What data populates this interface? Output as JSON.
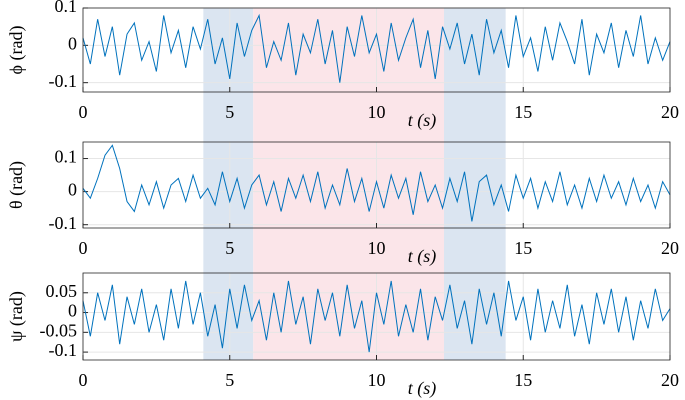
{
  "chart_data": [
    {
      "type": "line",
      "ylabel": "ϕ (rad)",
      "xlabel": "t (s)",
      "xlim": [
        0,
        20
      ],
      "xticks": [
        0,
        5,
        10,
        15,
        20
      ],
      "ylim": [
        -0.125,
        0.1
      ],
      "yticks": [
        -0.1,
        0,
        0.1
      ],
      "grid": true,
      "shaded_regions": [
        {
          "from": 4.1,
          "to": 5.8,
          "color": "#dbe5f1"
        },
        {
          "from": 5.8,
          "to": 12.3,
          "color": "#fbe5e9"
        },
        {
          "from": 12.3,
          "to": 14.4,
          "color": "#dbe5f1"
        }
      ],
      "x": [
        0,
        0.25,
        0.5,
        0.75,
        1,
        1.25,
        1.5,
        1.75,
        2,
        2.25,
        2.5,
        2.75,
        3,
        3.25,
        3.5,
        3.75,
        4,
        4.25,
        4.5,
        4.75,
        5,
        5.25,
        5.5,
        5.75,
        6,
        6.25,
        6.5,
        6.75,
        7,
        7.25,
        7.5,
        7.75,
        8,
        8.25,
        8.5,
        8.75,
        9,
        9.25,
        9.5,
        9.75,
        10,
        10.25,
        10.5,
        10.75,
        11,
        11.25,
        11.5,
        11.75,
        12,
        12.25,
        12.5,
        12.75,
        13,
        13.25,
        13.5,
        13.75,
        14,
        14.25,
        14.5,
        14.75,
        15,
        15.25,
        15.5,
        15.75,
        16,
        16.25,
        16.5,
        16.75,
        17,
        17.25,
        17.5,
        17.75,
        18,
        18.25,
        18.5,
        18.75,
        19,
        19.25,
        19.5,
        19.75,
        20
      ],
      "series": [
        {
          "color": "#0072bd",
          "values": [
            0.02,
            -0.05,
            0.07,
            -0.03,
            0.05,
            -0.08,
            0.03,
            0.06,
            -0.04,
            0.01,
            -0.07,
            0.08,
            -0.02,
            0.04,
            -0.06,
            0.05,
            -0.01,
            0.07,
            -0.05,
            0.02,
            -0.09,
            0.06,
            -0.03,
            0.04,
            0.08,
            -0.06,
            0.01,
            -0.04,
            0.06,
            -0.08,
            0.03,
            -0.02,
            0.07,
            -0.05,
            0.04,
            -0.1,
            0.05,
            -0.03,
            0.08,
            -0.02,
            0.03,
            -0.07,
            0.06,
            -0.04,
            0.02,
            0.07,
            -0.06,
            0.04,
            -0.09,
            0.05,
            -0.01,
            0.06,
            -0.05,
            0.03,
            -0.08,
            0.07,
            -0.02,
            0.04,
            -0.06,
            0.08,
            -0.03,
            0.02,
            -0.07,
            0.05,
            -0.04,
            0.06,
            0.01,
            -0.05,
            0.07,
            -0.08,
            0.03,
            -0.02,
            0.06,
            -0.06,
            0.04,
            -0.03,
            0.08,
            -0.05,
            0.02,
            -0.04,
            0.01
          ]
        }
      ]
    },
    {
      "type": "line",
      "ylabel": "θ (rad)",
      "xlabel": "t (s)",
      "xlim": [
        0,
        20
      ],
      "xticks": [
        0,
        5,
        10,
        15,
        20
      ],
      "ylim": [
        -0.11,
        0.15
      ],
      "yticks": [
        -0.1,
        0,
        0.1
      ],
      "grid": true,
      "shaded_regions": [
        {
          "from": 4.1,
          "to": 5.8,
          "color": "#dbe5f1"
        },
        {
          "from": 5.8,
          "to": 12.3,
          "color": "#fbe5e9"
        },
        {
          "from": 12.3,
          "to": 14.4,
          "color": "#dbe5f1"
        }
      ],
      "x": [
        0,
        0.25,
        0.5,
        0.75,
        1,
        1.25,
        1.5,
        1.75,
        2,
        2.25,
        2.5,
        2.75,
        3,
        3.25,
        3.5,
        3.75,
        4,
        4.25,
        4.5,
        4.75,
        5,
        5.25,
        5.5,
        5.75,
        6,
        6.25,
        6.5,
        6.75,
        7,
        7.25,
        7.5,
        7.75,
        8,
        8.25,
        8.5,
        8.75,
        9,
        9.25,
        9.5,
        9.75,
        10,
        10.25,
        10.5,
        10.75,
        11,
        11.25,
        11.5,
        11.75,
        12,
        12.25,
        12.5,
        12.75,
        13,
        13.25,
        13.5,
        13.75,
        14,
        14.25,
        14.5,
        14.75,
        15,
        15.25,
        15.5,
        15.75,
        16,
        16.25,
        16.5,
        16.75,
        17,
        17.25,
        17.5,
        17.75,
        18,
        18.25,
        18.5,
        18.75,
        19,
        19.25,
        19.5,
        19.75,
        20
      ],
      "series": [
        {
          "color": "#0072bd",
          "values": [
            0.01,
            -0.02,
            0.04,
            0.11,
            0.14,
            0.07,
            -0.03,
            -0.06,
            0.02,
            -0.04,
            0.03,
            -0.05,
            0.02,
            0.04,
            -0.03,
            0.05,
            -0.02,
            0.01,
            -0.04,
            0.06,
            -0.03,
            0.04,
            -0.05,
            0.02,
            0.05,
            -0.04,
            0.03,
            -0.06,
            0.04,
            -0.02,
            0.05,
            -0.03,
            0.06,
            -0.05,
            0.02,
            -0.04,
            0.07,
            -0.03,
            0.04,
            -0.06,
            0.03,
            -0.05,
            0.05,
            -0.02,
            0.04,
            -0.07,
            0.06,
            -0.03,
            0.02,
            -0.05,
            0.04,
            -0.03,
            0.06,
            -0.09,
            0.03,
            0.05,
            -0.04,
            0.02,
            -0.06,
            0.05,
            -0.02,
            0.04,
            -0.05,
            0.03,
            -0.03,
            0.06,
            -0.04,
            0.02,
            -0.05,
            0.04,
            -0.03,
            0.05,
            -0.02,
            0.03,
            -0.04,
            0.04,
            -0.03,
            0.02,
            -0.05,
            0.03,
            -0.01
          ]
        }
      ]
    },
    {
      "type": "line",
      "ylabel": "ψ (rad)",
      "xlabel": "t (s)",
      "xlim": [
        0,
        20
      ],
      "xticks": [
        0,
        5,
        10,
        15,
        20
      ],
      "ylim": [
        -0.12,
        0.1
      ],
      "yticks": [
        -0.1,
        -0.05,
        0,
        0.05
      ],
      "grid": true,
      "shaded_regions": [
        {
          "from": 4.1,
          "to": 5.8,
          "color": "#dbe5f1"
        },
        {
          "from": 5.8,
          "to": 12.3,
          "color": "#fbe5e9"
        },
        {
          "from": 12.3,
          "to": 14.4,
          "color": "#dbe5f1"
        }
      ],
      "x": [
        0,
        0.25,
        0.5,
        0.75,
        1,
        1.25,
        1.5,
        1.75,
        2,
        2.25,
        2.5,
        2.75,
        3,
        3.25,
        3.5,
        3.75,
        4,
        4.25,
        4.5,
        4.75,
        5,
        5.25,
        5.5,
        5.75,
        6,
        6.25,
        6.5,
        6.75,
        7,
        7.25,
        7.5,
        7.75,
        8,
        8.25,
        8.5,
        8.75,
        9,
        9.25,
        9.5,
        9.75,
        10,
        10.25,
        10.5,
        10.75,
        11,
        11.25,
        11.5,
        11.75,
        12,
        12.25,
        12.5,
        12.75,
        13,
        13.25,
        13.5,
        13.75,
        14,
        14.25,
        14.5,
        14.75,
        15,
        15.25,
        15.5,
        15.75,
        16,
        16.25,
        16.5,
        16.75,
        17,
        17.25,
        17.5,
        17.75,
        18,
        18.25,
        18.5,
        18.75,
        19,
        19.25,
        19.5,
        19.75,
        20
      ],
      "series": [
        {
          "color": "#0072bd",
          "values": [
            0.03,
            -0.06,
            0.05,
            -0.02,
            0.07,
            -0.08,
            0.04,
            -0.03,
            0.06,
            -0.05,
            0.02,
            -0.07,
            0.06,
            -0.04,
            0.08,
            -0.03,
            0.05,
            -0.06,
            0.02,
            -0.09,
            0.06,
            -0.04,
            0.07,
            -0.02,
            0.03,
            -0.07,
            0.05,
            -0.05,
            0.08,
            -0.03,
            0.04,
            -0.08,
            0.06,
            -0.02,
            0.05,
            -0.06,
            0.07,
            -0.04,
            0.03,
            -0.1,
            0.05,
            -0.03,
            0.08,
            -0.06,
            0.02,
            -0.05,
            0.06,
            -0.07,
            0.04,
            -0.02,
            0.07,
            -0.04,
            0.03,
            -0.08,
            0.06,
            -0.03,
            0.05,
            -0.06,
            0.08,
            -0.02,
            0.04,
            -0.07,
            0.06,
            -0.05,
            0.03,
            -0.04,
            0.07,
            -0.06,
            0.02,
            -0.08,
            0.05,
            -0.03,
            0.06,
            -0.05,
            0.04,
            -0.07,
            0.03,
            -0.04,
            0.06,
            -0.02,
            0.01
          ]
        }
      ]
    }
  ]
}
